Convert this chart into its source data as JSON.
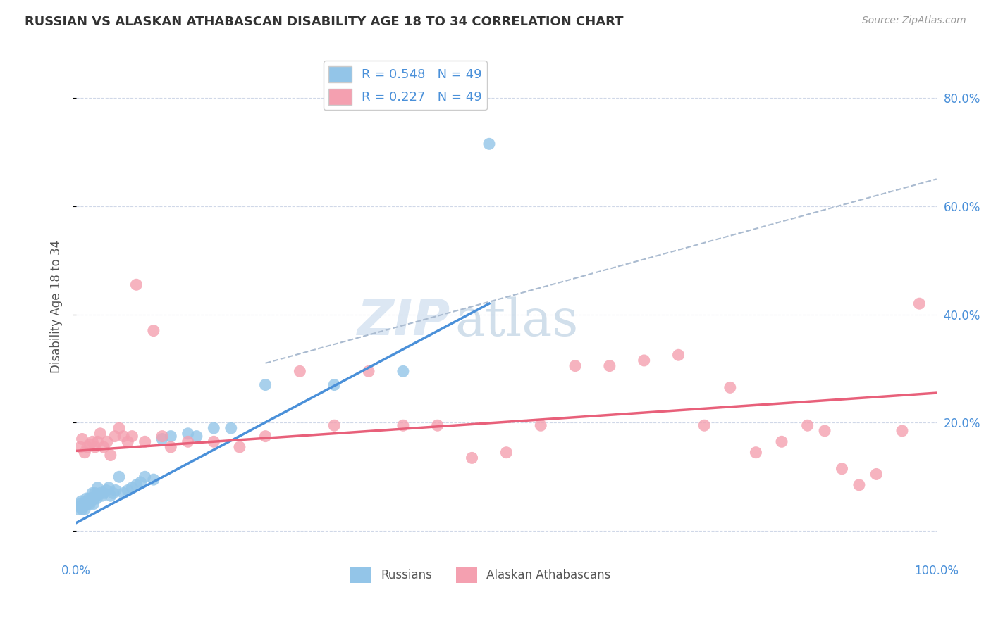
{
  "title": "RUSSIAN VS ALASKAN ATHABASCAN DISABILITY AGE 18 TO 34 CORRELATION CHART",
  "source": "Source: ZipAtlas.com",
  "xlabel": "",
  "ylabel": "Disability Age 18 to 34",
  "xlim": [
    0,
    1.0
  ],
  "ylim": [
    -0.05,
    0.88
  ],
  "xticks": [
    0.0,
    0.2,
    0.4,
    0.6,
    0.8,
    1.0
  ],
  "xticklabels": [
    "0.0%",
    "",
    "",
    "",
    "",
    "100.0%"
  ],
  "ytick_positions": [
    0.0,
    0.2,
    0.4,
    0.6,
    0.8
  ],
  "ytick_labels": [
    "",
    "20.0%",
    "40.0%",
    "60.0%",
    "80.0%"
  ],
  "russian_R": 0.548,
  "russian_N": 49,
  "athabascan_R": 0.227,
  "athabascan_N": 49,
  "russian_color": "#93c5e8",
  "athabascan_color": "#f4a0b0",
  "russian_line_color": "#4a90d9",
  "athabascan_line_color": "#e8607a",
  "watermark_color": "#c8d8e8",
  "axis_label_color": "#4a90d9",
  "title_color": "#333333",
  "grid_color": "#d0d8e8",
  "background_color": "#ffffff",
  "russian_scatter_x": [
    0.003,
    0.004,
    0.005,
    0.006,
    0.007,
    0.008,
    0.009,
    0.01,
    0.011,
    0.012,
    0.013,
    0.014,
    0.015,
    0.016,
    0.017,
    0.018,
    0.019,
    0.02,
    0.021,
    0.022,
    0.023,
    0.024,
    0.025,
    0.028,
    0.03,
    0.032,
    0.035,
    0.038,
    0.04,
    0.043,
    0.046,
    0.05,
    0.055,
    0.06,
    0.065,
    0.07,
    0.075,
    0.08,
    0.09,
    0.1,
    0.11,
    0.13,
    0.14,
    0.16,
    0.18,
    0.22,
    0.3,
    0.38,
    0.48
  ],
  "russian_scatter_y": [
    0.04,
    0.045,
    0.05,
    0.055,
    0.04,
    0.045,
    0.05,
    0.04,
    0.05,
    0.06,
    0.05,
    0.055,
    0.06,
    0.05,
    0.055,
    0.06,
    0.07,
    0.05,
    0.06,
    0.07,
    0.065,
    0.06,
    0.08,
    0.07,
    0.065,
    0.07,
    0.075,
    0.08,
    0.065,
    0.07,
    0.075,
    0.1,
    0.07,
    0.075,
    0.08,
    0.085,
    0.09,
    0.1,
    0.095,
    0.17,
    0.175,
    0.18,
    0.175,
    0.19,
    0.19,
    0.27,
    0.27,
    0.295,
    0.715
  ],
  "athabascan_scatter_x": [
    0.005,
    0.007,
    0.01,
    0.013,
    0.016,
    0.019,
    0.022,
    0.025,
    0.028,
    0.032,
    0.036,
    0.04,
    0.045,
    0.05,
    0.055,
    0.06,
    0.065,
    0.07,
    0.08,
    0.09,
    0.1,
    0.11,
    0.13,
    0.16,
    0.19,
    0.22,
    0.26,
    0.3,
    0.34,
    0.38,
    0.42,
    0.46,
    0.5,
    0.54,
    0.58,
    0.62,
    0.66,
    0.7,
    0.73,
    0.76,
    0.79,
    0.82,
    0.85,
    0.87,
    0.89,
    0.91,
    0.93,
    0.96,
    0.98
  ],
  "athabascan_scatter_y": [
    0.155,
    0.17,
    0.145,
    0.155,
    0.16,
    0.165,
    0.155,
    0.165,
    0.18,
    0.155,
    0.165,
    0.14,
    0.175,
    0.19,
    0.175,
    0.165,
    0.175,
    0.455,
    0.165,
    0.37,
    0.175,
    0.155,
    0.165,
    0.165,
    0.155,
    0.175,
    0.295,
    0.195,
    0.295,
    0.195,
    0.195,
    0.135,
    0.145,
    0.195,
    0.305,
    0.305,
    0.315,
    0.325,
    0.195,
    0.265,
    0.145,
    0.165,
    0.195,
    0.185,
    0.115,
    0.085,
    0.105,
    0.185,
    0.42
  ],
  "russian_trend_x": [
    0.0,
    0.48
  ],
  "russian_trend_y": [
    0.015,
    0.42
  ],
  "athabascan_trend_x": [
    0.0,
    1.0
  ],
  "athabascan_trend_y": [
    0.148,
    0.255
  ],
  "dashed_trend_x": [
    0.22,
    1.0
  ],
  "dashed_trend_y": [
    0.31,
    0.65
  ]
}
